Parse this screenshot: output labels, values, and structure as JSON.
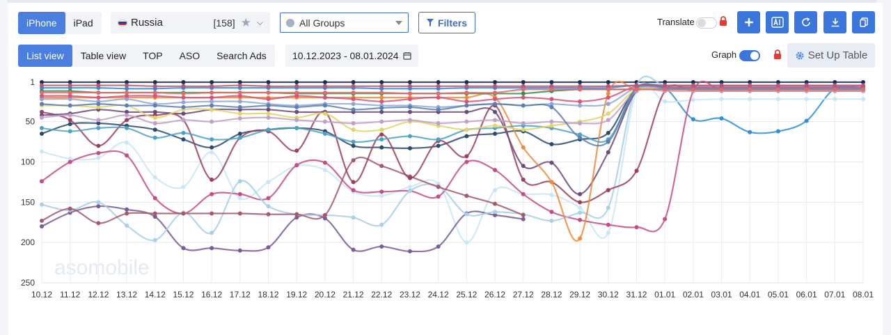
{
  "device_tabs": [
    {
      "label": "iPhone",
      "active": true
    },
    {
      "label": "iPad",
      "active": false
    }
  ],
  "country": {
    "name": "Russia",
    "count": "[158]"
  },
  "groups": {
    "label": "All Groups"
  },
  "filters": {
    "label": "Filters"
  },
  "translate": {
    "label": "Translate",
    "on": false
  },
  "view_tabs": [
    {
      "label": "List view",
      "active": true
    },
    {
      "label": "Table view",
      "active": false
    },
    {
      "label": "TOP",
      "active": false
    },
    {
      "label": "ASO",
      "active": false
    },
    {
      "label": "Search Ads",
      "active": false
    }
  ],
  "date_range": "10.12.2023 - 08.01.2024",
  "graph": {
    "label": "Graph",
    "on": true
  },
  "setup_table": {
    "label": "Set Up Table"
  },
  "colors": {
    "accent": "#3a76dc",
    "lock": "#e53935"
  },
  "chart_data": {
    "type": "line",
    "watermark": "asomobile",
    "x": [
      "10.12",
      "11.12",
      "12.12",
      "13.12",
      "14.12",
      "15.12",
      "16.12",
      "17.12",
      "18.12",
      "19.12",
      "20.12",
      "21.12",
      "22.12",
      "23.12",
      "24.12",
      "25.12",
      "26.12",
      "27.12",
      "28.12",
      "29.12",
      "30.12",
      "31.12",
      "01.01",
      "02.01",
      "03.01",
      "04.01",
      "05.01",
      "06.01",
      "07.01",
      "08.01"
    ],
    "y_ticks": [
      1,
      50,
      100,
      150,
      200,
      250
    ],
    "ylim": [
      1,
      250
    ],
    "y_inverted": true,
    "grid": true,
    "series": [
      {
        "color": "#1a2f4f",
        "values": [
          1,
          1,
          1,
          1,
          1,
          1,
          1,
          1,
          1,
          1,
          1,
          1,
          1,
          1,
          1,
          1,
          1,
          1,
          1,
          1,
          1,
          1,
          1,
          1,
          1,
          1,
          1,
          1,
          1,
          1
        ]
      },
      {
        "color": "#2e8fd6",
        "values": [
          8,
          8,
          8,
          9,
          9,
          8,
          8,
          8,
          8,
          8,
          8,
          8,
          9,
          9,
          9,
          8,
          8,
          8,
          8,
          8,
          8,
          5,
          8,
          47,
          46,
          63,
          62,
          49,
          9,
          9
        ]
      },
      {
        "color": "#c8e6f5",
        "values": [
          87,
          96,
          95,
          76,
          119,
          131,
          88,
          145,
          125,
          105,
          110,
          137,
          142,
          131,
          127,
          200,
          135,
          140,
          141,
          157,
          188,
          12,
          25,
          23,
          22,
          22,
          22,
          22,
          22,
          22
        ]
      },
      {
        "color": "#c54d86",
        "values": [
          124,
          100,
          89,
          92,
          145,
          164,
          140,
          140,
          145,
          104,
          101,
          135,
          137,
          136,
          143,
          100,
          110,
          140,
          162,
          172,
          178,
          181,
          171,
          12,
          11,
          10,
          10,
          10,
          10,
          10
        ]
      },
      {
        "color": "#7a5c96",
        "values": [
          180,
          163,
          155,
          159,
          168,
          207,
          207,
          210,
          206,
          169,
          170,
          209,
          205,
          211,
          205,
          164,
          166,
          171,
          null,
          null,
          null,
          null,
          null,
          null,
          null,
          null,
          null,
          null,
          null,
          null
        ]
      },
      {
        "color": "#a7cfe6",
        "values": [
          153,
          160,
          150,
          179,
          197,
          163,
          188,
          124,
          155,
          165,
          166,
          169,
          178,
          136,
          130,
          165,
          162,
          165,
          173,
          163,
          157,
          5,
          5,
          5,
          5,
          5,
          5,
          5,
          5,
          5
        ]
      },
      {
        "color": "#a35a6a",
        "values": [
          173,
          158,
          176,
          164,
          164,
          164,
          164,
          164,
          165,
          165,
          166,
          98,
          105,
          118,
          131,
          142,
          152,
          166,
          null,
          null,
          null,
          null,
          null,
          null,
          null,
          null,
          null,
          null,
          null,
          null
        ]
      },
      {
        "color": "#2b4a6e",
        "values": [
          65,
          53,
          52,
          55,
          60,
          72,
          82,
          65,
          60,
          58,
          62,
          80,
          82,
          83,
          80,
          68,
          65,
          62,
          78,
          72,
          64,
          8,
          10,
          10,
          10,
          10,
          10,
          10,
          10,
          10
        ]
      },
      {
        "color": "#9a3f5e",
        "values": [
          38,
          48,
          80,
          48,
          42,
          48,
          122,
          70,
          62,
          86,
          38,
          125,
          66,
          120,
          74,
          93,
          30,
          122,
          125,
          150,
          135,
          111,
          12,
          12,
          12,
          12,
          12,
          12,
          12,
          12
        ]
      },
      {
        "color": "#6b4a7a",
        "values": [
          42,
          40,
          35,
          38,
          38,
          40,
          35,
          35,
          35,
          38,
          38,
          38,
          38,
          38,
          38,
          38,
          38,
          105,
          101,
          140,
          88,
          12,
          10,
          10,
          10,
          10,
          10,
          10,
          10,
          10
        ]
      },
      {
        "color": "#f08a3c",
        "values": [
          20,
          20,
          20,
          20,
          20,
          20,
          20,
          20,
          20,
          20,
          20,
          20,
          20,
          20,
          20,
          20,
          20,
          82,
          125,
          195,
          15,
          10,
          10,
          10,
          10,
          10,
          10,
          10,
          10,
          10
        ]
      },
      {
        "color": "#4aa3c5",
        "values": [
          58,
          62,
          58,
          58,
          70,
          64,
          72,
          70,
          60,
          58,
          65,
          75,
          72,
          68,
          72,
          60,
          58,
          55,
          58,
          66,
          72,
          10,
          10,
          10,
          10,
          10,
          10,
          10,
          10,
          10
        ]
      },
      {
        "color": "#e0d36a",
        "values": [
          30,
          30,
          32,
          30,
          45,
          35,
          35,
          40,
          40,
          45,
          40,
          60,
          60,
          50,
          55,
          60,
          55,
          60,
          55,
          50,
          40,
          10,
          10,
          10,
          10,
          10,
          10,
          10,
          10,
          10
        ]
      },
      {
        "color": "#3a8c4a",
        "values": [
          12,
          12,
          14,
          14,
          14,
          14,
          14,
          14,
          14,
          15,
          15,
          15,
          15,
          15,
          15,
          15,
          15,
          15,
          12,
          10,
          10,
          10,
          10,
          10,
          10,
          10,
          10,
          10,
          10,
          10
        ]
      },
      {
        "color": "#8ea8d6",
        "values": [
          22,
          22,
          25,
          22,
          28,
          26,
          25,
          25,
          28,
          30,
          28,
          28,
          30,
          30,
          32,
          30,
          28,
          30,
          28,
          30,
          28,
          8,
          8,
          8,
          8,
          8,
          8,
          8,
          8,
          8
        ]
      },
      {
        "color": "#d4577a",
        "values": [
          18,
          18,
          20,
          18,
          18,
          20,
          20,
          18,
          22,
          18,
          20,
          22,
          25,
          22,
          20,
          25,
          22,
          20,
          22,
          25,
          20,
          6,
          6,
          6,
          6,
          6,
          6,
          6,
          6,
          6
        ]
      },
      {
        "color": "#c0a0c6",
        "values": [
          45,
          42,
          48,
          42,
          52,
          48,
          50,
          46,
          45,
          48,
          50,
          52,
          50,
          48,
          52,
          50,
          48,
          52,
          50,
          52,
          48,
          12,
          12,
          12,
          12,
          12,
          12,
          12,
          12,
          12
        ]
      },
      {
        "color": "#5a7fb0",
        "values": [
          28,
          30,
          28,
          30,
          30,
          32,
          30,
          32,
          30,
          32,
          30,
          35,
          33,
          32,
          35,
          30,
          28,
          30,
          32,
          70,
          75,
          8,
          8,
          8,
          8,
          8,
          8,
          8,
          8,
          8
        ]
      },
      {
        "color": "#b8557e",
        "values": [
          5,
          5,
          5,
          5,
          6,
          6,
          6,
          5,
          6,
          6,
          6,
          6,
          6,
          6,
          6,
          6,
          6,
          6,
          6,
          6,
          6,
          5,
          5,
          5,
          5,
          5,
          5,
          5,
          5,
          5
        ]
      },
      {
        "color": "#e36a6a",
        "values": [
          14,
          14,
          14,
          14,
          14,
          15,
          14,
          14,
          14,
          14,
          14,
          14,
          14,
          15,
          15,
          14,
          14,
          10,
          10,
          10,
          10,
          10,
          10,
          10,
          10,
          10,
          10,
          10,
          10,
          10
        ]
      }
    ]
  }
}
